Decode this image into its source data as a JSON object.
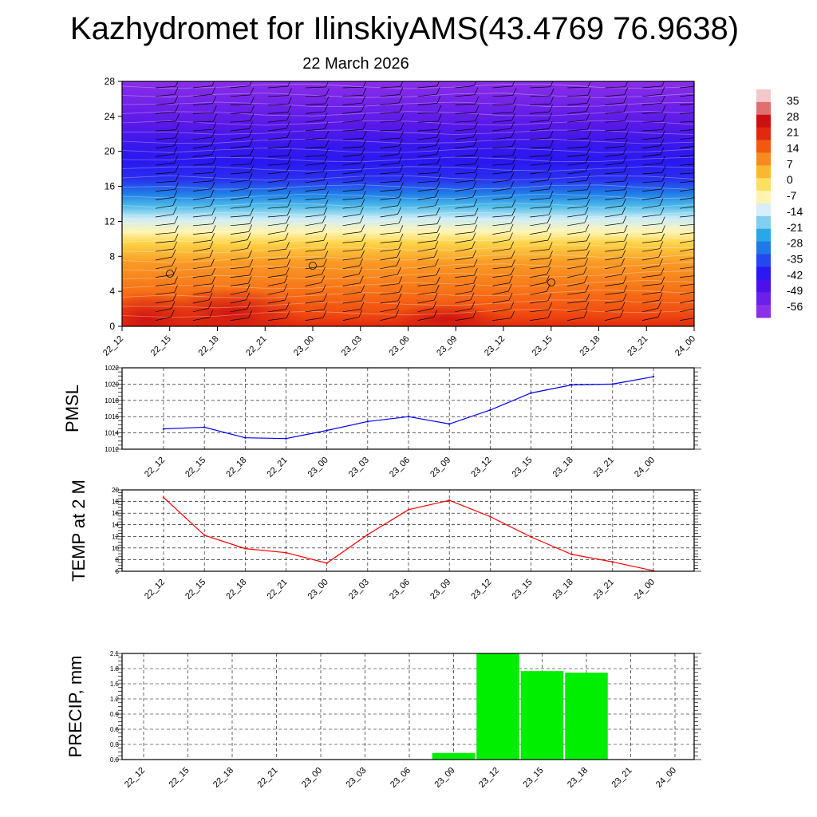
{
  "title": "Kazhydromet for IlinskiyAMS(43.4769 76.9638)",
  "subtitle": "22 March 2026",
  "colors": {
    "pmsl_line": "#0000ff",
    "temp_line": "#ff0000",
    "precip_bar": "#00ee00",
    "grid": "#000000"
  },
  "chart_data": [
    {
      "type": "heatmap",
      "description_of_field": "vertical temperature cross-section with wind barbs",
      "x_tick_labels": [
        "22_12",
        "22_15",
        "22_18",
        "22_21",
        "23_00",
        "23_03",
        "23_06",
        "23_09",
        "23_12",
        "23_15",
        "23_18",
        "23_21",
        "24_00"
      ],
      "y_ticks": [
        0,
        4,
        8,
        12,
        16,
        20,
        24,
        28
      ],
      "ylim": [
        0,
        28
      ],
      "colorbar_labels": [
        "35",
        "28",
        "21",
        "14",
        "7",
        "0",
        "-7",
        "-14",
        "-21",
        "-28",
        "-35",
        "-42",
        "-49",
        "-56"
      ],
      "colorbar_colors": [
        "#f3c8c8",
        "#e07070",
        "#cc1010",
        "#e02a10",
        "#f05a10",
        "#f88a20",
        "#fcb830",
        "#fde060",
        "#fff4b0",
        "#d8eef8",
        "#80cef0",
        "#28a8e8",
        "#1f78e8",
        "#2448f0",
        "#2a18f0",
        "#4c10e8",
        "#6a20e8",
        "#8a30e8"
      ]
    },
    {
      "type": "line",
      "ylabel": "PMSL",
      "categories": [
        "22_12",
        "22_15",
        "22_18",
        "22_21",
        "23_00",
        "23_03",
        "23_06",
        "23_09",
        "23_12",
        "23_15",
        "23_18",
        "23_21",
        "24_00"
      ],
      "series": [
        {
          "values": [
            1014.5,
            1014.7,
            1013.4,
            1013.3,
            1014.3,
            1015.4,
            1016.0,
            1015.1,
            1016.8,
            1018.9,
            1019.9,
            1020.0,
            1020.9
          ]
        }
      ],
      "y_ticks": [
        1012,
        1014,
        1016,
        1018,
        1020,
        1022
      ],
      "ylim": [
        1012,
        1022
      ],
      "grid": true
    },
    {
      "type": "line",
      "ylabel": "TEMP at 2 M",
      "categories": [
        "22_12",
        "22_15",
        "22_18",
        "22_21",
        "23_00",
        "23_03",
        "23_06",
        "23_09",
        "23_12",
        "23_15",
        "23_18",
        "23_21",
        "24_00"
      ],
      "series": [
        {
          "values": [
            18.7,
            12.2,
            9.9,
            9.2,
            7.4,
            12.3,
            16.6,
            18.2,
            15.4,
            11.9,
            8.9,
            7.6,
            6.1
          ]
        }
      ],
      "y_ticks": [
        6,
        8,
        10,
        12,
        14,
        16,
        18,
        20
      ],
      "ylim": [
        6,
        20
      ],
      "grid": true
    },
    {
      "type": "bar",
      "ylabel": "PRECIP, mm",
      "categories": [
        "22_12",
        "22_15",
        "22_18",
        "22_21",
        "23_00",
        "23_03",
        "23_06",
        "23_09",
        "23_12",
        "23_15",
        "23_18",
        "23_21",
        "24_00"
      ],
      "values": [
        0,
        0,
        0,
        0,
        0,
        0,
        0,
        0.13,
        2.1,
        1.75,
        1.72,
        0,
        0
      ],
      "y_tick_labels": [
        "0.0",
        "0.3",
        "0.6",
        "0.9",
        "1.2",
        "1.5",
        "1.8",
        "2.1"
      ],
      "ylim": [
        0,
        2.1
      ],
      "grid": true
    }
  ]
}
